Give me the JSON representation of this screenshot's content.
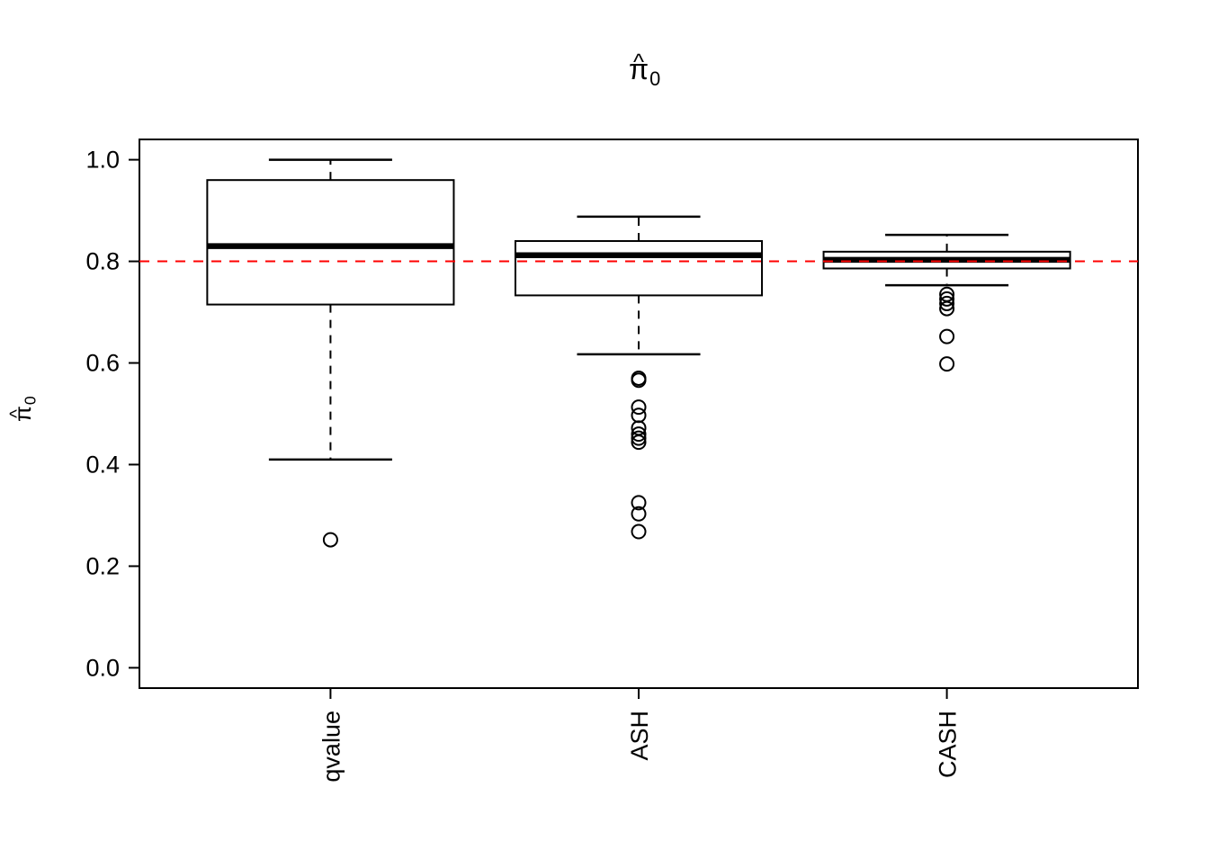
{
  "figure": {
    "background": "#ffffff",
    "foreground": "#000000"
  },
  "chart_data": {
    "type": "boxplot",
    "title": {
      "text": "π̂0",
      "base": "π",
      "hat": "^",
      "subscript": "0"
    },
    "ylabel": {
      "text": "π̂0",
      "base": "π",
      "hat": "^",
      "subscript": "0"
    },
    "xlabel": "",
    "categories": [
      "qvalue",
      "ASH",
      "CASH"
    ],
    "ylim": [
      0,
      1
    ],
    "axis_expansion": 0.04,
    "ytick_values": [
      0.0,
      0.2,
      0.4,
      0.6,
      0.8,
      1.0
    ],
    "ytick_labels": [
      "0.0",
      "0.2",
      "0.4",
      "0.6",
      "0.8",
      "1.0"
    ],
    "grid": false,
    "legend": false,
    "box_fill": "#ffffff",
    "box_color": "#000000",
    "reference_line": {
      "y": 0.8,
      "color": "#FF0000",
      "style": "dashed"
    },
    "series": [
      {
        "name": "qvalue",
        "whisker_low": 0.41,
        "q1": 0.715,
        "median": 0.83,
        "q3": 0.96,
        "whisker_high": 1.0,
        "outliers": [
          0.252
        ]
      },
      {
        "name": "ASH",
        "whisker_low": 0.617,
        "q1": 0.733,
        "median": 0.812,
        "q3": 0.84,
        "whisker_high": 0.888,
        "outliers": [
          0.57,
          0.566,
          0.513,
          0.497,
          0.472,
          0.46,
          0.452,
          0.444,
          0.325,
          0.303,
          0.268
        ]
      },
      {
        "name": "CASH",
        "whisker_low": 0.753,
        "q1": 0.786,
        "median": 0.803,
        "q3": 0.819,
        "whisker_high": 0.852,
        "outliers": [
          0.735,
          0.726,
          0.717,
          0.707,
          0.652,
          0.598
        ]
      }
    ]
  }
}
